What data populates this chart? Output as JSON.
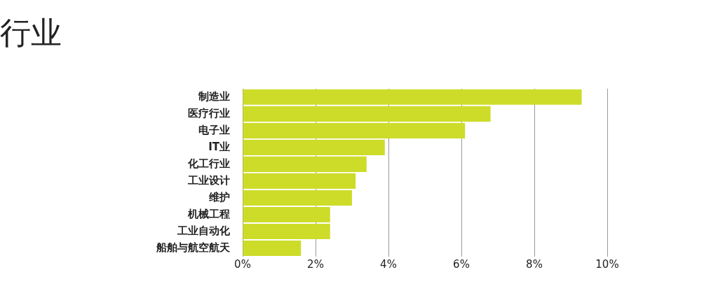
{
  "chart_data": {
    "type": "bar",
    "title": "行业",
    "orientation": "horizontal",
    "categories": [
      "制造业",
      "医疗行业",
      "电子业",
      "IT业",
      "化工行业",
      "工业设计",
      "维护",
      "机械工程",
      "工业自动化",
      "船舶与航空航天"
    ],
    "values": [
      9.3,
      6.8,
      6.1,
      3.9,
      3.4,
      3.1,
      3.0,
      2.4,
      2.4,
      1.6
    ],
    "color": "#cddc29",
    "xlim": [
      0,
      10
    ],
    "xticks": [
      {
        "value": 0,
        "label": "0%"
      },
      {
        "value": 2,
        "label": "2%"
      },
      {
        "value": 4,
        "label": "4%"
      },
      {
        "value": 6,
        "label": "6%"
      },
      {
        "value": 8,
        "label": "8%"
      },
      {
        "value": 10,
        "label": "10%"
      }
    ],
    "grid": "x",
    "legend": false
  }
}
